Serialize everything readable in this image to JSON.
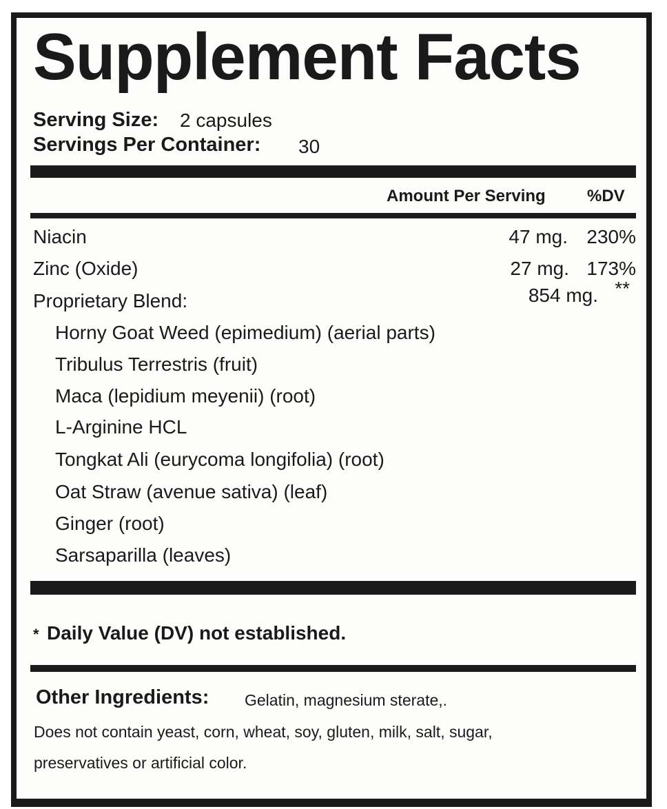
{
  "title": "Supplement Facts",
  "serving": {
    "size_label": "Serving Size:",
    "size_value": "2 capsules",
    "per_container_label": "Servings Per Container:",
    "per_container_value": "30"
  },
  "columns": {
    "amount": "Amount Per Serving",
    "dv": "%DV"
  },
  "nutrients": [
    {
      "name": "Niacin",
      "amount": "47 mg.",
      "dv": "230%"
    },
    {
      "name": "Zinc (Oxide)",
      "amount": "27 mg.",
      "dv": "173%"
    },
    {
      "name": "Proprietary Blend:",
      "amount": "854 mg.",
      "dv": "**"
    }
  ],
  "blend_items": [
    "Horny Goat Weed (epimedium) (aerial parts)",
    "Tribulus Terrestris (fruit)",
    "Maca (lepidium meyenii) (root)",
    "L-Arginine HCL",
    "Tongkat Ali (eurycoma longifolia) (root)",
    "Oat Straw (avenue sativa) (leaf)",
    "Ginger (root)",
    "Sarsaparilla (leaves)"
  ],
  "footnote": {
    "mark": "*",
    "text": "Daily Value (DV) not established."
  },
  "other": {
    "label": "Other Ingredients:",
    "value": "Gelatin, magnesium sterate,.",
    "note_line1": "Does not contain yeast, corn, wheat, soy, gluten, milk, salt, sugar,",
    "note_line2": "preservatives or artificial color."
  }
}
